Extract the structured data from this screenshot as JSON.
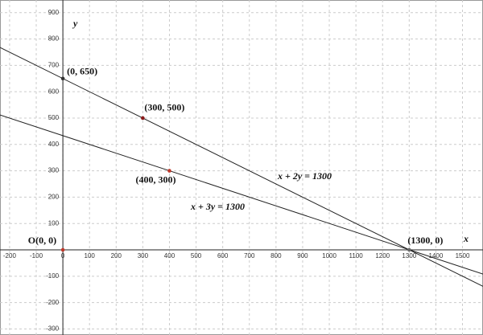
{
  "chart_data": {
    "type": "line",
    "x_label": "x",
    "y_label": "y",
    "xlim": [
      -236,
      1577
    ],
    "ylim": [
      -323,
      948
    ],
    "xticks": [
      -200,
      -100,
      0,
      100,
      200,
      300,
      400,
      500,
      600,
      700,
      800,
      900,
      1000,
      1100,
      1200,
      1300,
      1400,
      1500
    ],
    "yticks": [
      -300,
      -200,
      -100,
      100,
      200,
      300,
      400,
      500,
      600,
      700,
      800,
      900
    ],
    "grid": true,
    "series": [
      {
        "name": "x + 2y = 1300",
        "color": "#222222",
        "x": [
          -236,
          1577
        ],
        "values": [
          768,
          -138.5
        ]
      },
      {
        "name": "x + 3y = 1300",
        "color": "#222222",
        "x": [
          -236,
          1577
        ],
        "values": [
          512,
          -92
        ]
      }
    ],
    "points": [
      {
        "label": "(0, 650)",
        "x": 0,
        "y": 650,
        "color": "#333333"
      },
      {
        "label": "(300, 500)",
        "x": 300,
        "y": 500,
        "color": "#8b1a1a"
      },
      {
        "label": "(400, 300)",
        "x": 400,
        "y": 300,
        "color": "#c0392b"
      },
      {
        "label": "(1300, 0)",
        "x": 1300,
        "y": 0,
        "color": "#666666"
      },
      {
        "label": "O(0, 0)",
        "x": 0,
        "y": 0,
        "color": "#c0392b"
      }
    ]
  }
}
